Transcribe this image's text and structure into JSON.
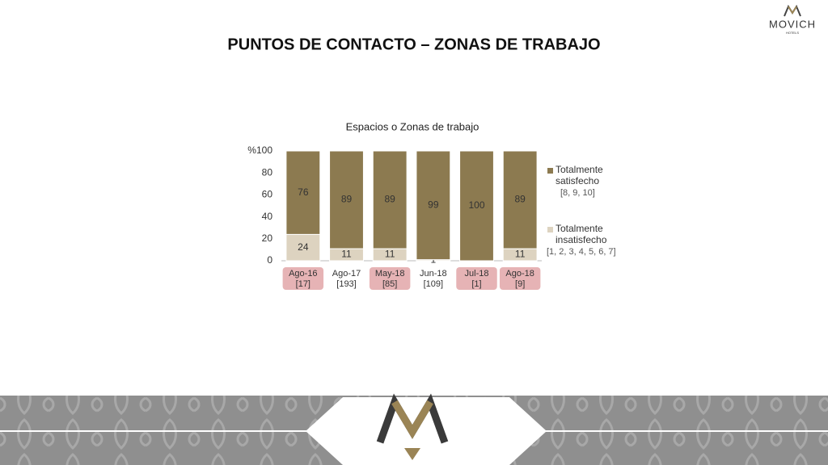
{
  "header": {
    "title": "PUNTOS DE CONTACTO – ZONAS DE TRABAJO",
    "logo": "MOVICH",
    "logo_sub": "HOTELS"
  },
  "chart_data": {
    "type": "stacked_bar",
    "title": "Espacios o Zonas de trabajo",
    "categories": [
      "Ago-16",
      "Ago-17",
      "May-18",
      "Jun-18",
      "Jul-18",
      "Ago-18"
    ],
    "sample_sizes": [
      "[17]",
      "[193]",
      "[85]",
      "[109]",
      "[1]",
      "[9]"
    ],
    "highlighted": [
      true,
      false,
      true,
      false,
      true,
      true
    ],
    "series": [
      {
        "name": "Totalmente insatisfecho",
        "note": "[1, 2, 3, 4, 5, 6, 7]",
        "color": "#ddd3c0",
        "values": [
          24,
          11,
          11,
          1,
          0,
          11
        ]
      },
      {
        "name": "Totalmente satisfecho",
        "note": "[8, 9, 10]",
        "color": "#8c7a50",
        "values": [
          76,
          89,
          89,
          99,
          100,
          89
        ]
      }
    ],
    "ylim": [
      0,
      100
    ],
    "yticks": [
      0,
      20,
      40,
      60,
      80,
      {
        "value": 100,
        "label": "%100"
      }
    ],
    "grid": false,
    "legend": "right"
  }
}
